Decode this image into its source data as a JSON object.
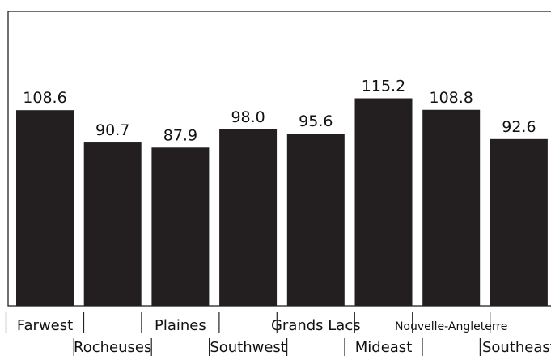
{
  "chart_data": {
    "type": "bar",
    "categories": [
      "Farwest",
      "Rocheuses",
      "Plaines",
      "Southwest",
      "Grands Lacs",
      "Mideast",
      "Nouvelle-Angleterre",
      "Southeast"
    ],
    "values": [
      108.6,
      90.7,
      87.9,
      98.0,
      95.6,
      115.2,
      108.8,
      92.6
    ],
    "value_labels": [
      "108.6",
      "90.7",
      "87.9",
      "98.0",
      "95.6",
      "115.2",
      "108.8",
      "92.6"
    ],
    "ylim": [
      0,
      130
    ],
    "colors": {
      "bar": "#231f20",
      "background": "#ffffff"
    },
    "grid": false,
    "label_rows": [
      "top",
      "bottom",
      "top",
      "bottom",
      "top",
      "bottom",
      "top",
      "bottom"
    ]
  }
}
